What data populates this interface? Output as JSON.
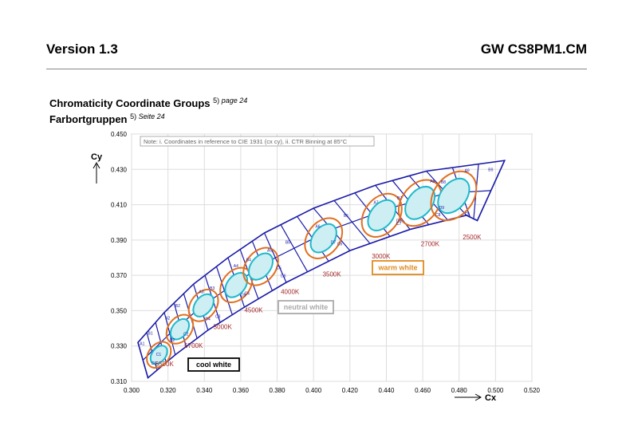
{
  "header": {
    "version": "Version 1.3",
    "product": "GW CS8PM1.CM"
  },
  "section": {
    "title_en": "Chromaticity Coordinate Groups",
    "ref_en_num": "5)",
    "ref_en_page": "page 24",
    "title_de": "Farbortgruppen",
    "ref_de_num": "5)",
    "ref_de_page": "Seite 24"
  },
  "chart_data": {
    "type": "scatter",
    "title": "",
    "xlabel": "Cx",
    "ylabel": "Cy",
    "xlim": [
      0.3,
      0.52
    ],
    "ylim": [
      0.31,
      0.45
    ],
    "x_ticks": [
      "0.300",
      "0.320",
      "0.340",
      "0.360",
      "0.380",
      "0.400",
      "0.420",
      "0.440",
      "0.460",
      "0.480",
      "0.500",
      "0.520"
    ],
    "y_ticks": [
      "0.310",
      "0.330",
      "0.350",
      "0.370",
      "0.390",
      "0.410",
      "0.430",
      "0.450"
    ],
    "grid": true,
    "note": "Note: i. Coordinates in reference to CIE 1931 (cx cy), ii. CTR Binning at 85°C",
    "regions": [
      {
        "label": "cool white",
        "color": "#000000"
      },
      {
        "label": "neutral white",
        "color": "#aaaaaa"
      },
      {
        "label": "warm white",
        "color": "#e08a1e"
      }
    ],
    "cct_labels": [
      {
        "label": "6500K",
        "x": 0.313,
        "y": 0.3185
      },
      {
        "label": "5700K",
        "x": 0.329,
        "y": 0.329
      },
      {
        "label": "5000K",
        "x": 0.345,
        "y": 0.3395
      },
      {
        "label": "4500K",
        "x": 0.362,
        "y": 0.349
      },
      {
        "label": "4000K",
        "x": 0.382,
        "y": 0.3595
      },
      {
        "label": "3500K",
        "x": 0.405,
        "y": 0.3695
      },
      {
        "label": "3000K",
        "x": 0.432,
        "y": 0.3795
      },
      {
        "label": "2700K",
        "x": 0.459,
        "y": 0.3865
      },
      {
        "label": "2500K",
        "x": 0.482,
        "y": 0.3905
      }
    ],
    "bins": [
      "A1",
      "B1",
      "C1",
      "A2",
      "B2",
      "C2",
      "A3",
      "B3",
      "C3",
      "A4",
      "B4",
      "C4",
      "A5",
      "B5",
      "C5",
      "A6",
      "B6",
      "C6",
      "A7",
      "B7",
      "C7",
      "A8",
      "B8",
      "C8",
      "A9",
      "B9",
      "C9",
      "D2",
      "D3",
      "D4",
      "D5",
      "D6",
      "D7",
      "D8",
      "D9"
    ],
    "cct_groups": [
      {
        "cx": 0.315,
        "cy": 0.325
      },
      {
        "cx": 0.3265,
        "cy": 0.3395
      },
      {
        "cx": 0.3395,
        "cy": 0.353
      },
      {
        "cx": 0.3575,
        "cy": 0.3645
      },
      {
        "cx": 0.371,
        "cy": 0.375
      },
      {
        "cx": 0.4055,
        "cy": 0.391
      },
      {
        "cx": 0.4375,
        "cy": 0.404
      },
      {
        "cx": 0.4585,
        "cy": 0.411
      },
      {
        "cx": 0.477,
        "cy": 0.415
      }
    ],
    "boundary_upper": [
      [
        0.3035,
        0.332
      ],
      [
        0.318,
        0.349
      ],
      [
        0.334,
        0.365
      ],
      [
        0.353,
        0.38
      ],
      [
        0.373,
        0.394
      ],
      [
        0.4,
        0.408
      ],
      [
        0.434,
        0.421
      ],
      [
        0.462,
        0.429
      ],
      [
        0.505,
        0.435
      ]
    ],
    "boundary_lower": [
      [
        0.309,
        0.312
      ],
      [
        0.324,
        0.325
      ],
      [
        0.342,
        0.339
      ],
      [
        0.362,
        0.352
      ],
      [
        0.385,
        0.366
      ],
      [
        0.42,
        0.384
      ],
      [
        0.453,
        0.396
      ],
      [
        0.484,
        0.404
      ],
      [
        0.49,
        0.401
      ]
    ]
  }
}
